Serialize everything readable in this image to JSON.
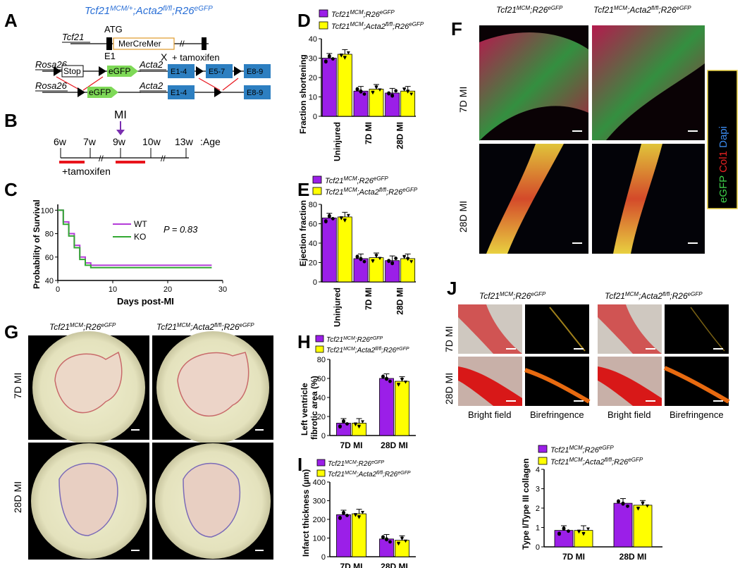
{
  "panels": {
    "A": "A",
    "B": "B",
    "C": "C",
    "D": "D",
    "E": "E",
    "F": "F",
    "G": "G",
    "H": "H",
    "I": "I",
    "J": "J"
  },
  "genotype": {
    "ctrl": {
      "g1": "Tcf21",
      "s1": "MCM",
      "g2": ";R26",
      "s2": "eGFP"
    },
    "ko": {
      "g1": "Tcf21",
      "s1": "MCM",
      "g2": ";Acta2",
      "s2": "fl/fl",
      "g3": ";R26",
      "s3": "eGFP"
    },
    "ko_het": {
      "g1": "Tcf21",
      "s1": "MCM/+",
      "g2": ";Acta2",
      "s2": "fl/fl",
      "g3": ";R26",
      "s3": "eGFP"
    }
  },
  "panel_a": {
    "tcf21": "Tcf21",
    "atg": "ATG",
    "e1": "E1",
    "mercremer": "MerCreMer",
    "cross": "X",
    "tamoxifen": "+ tamoxifen",
    "rosa26": "Rosa26",
    "stop": "Stop",
    "egfp": "eGFP",
    "acta2": "Acta2",
    "e14": "E1-4",
    "e57": "E5-7",
    "e89": "E8-9"
  },
  "panel_b": {
    "mi": "MI",
    "ticks": [
      "6w",
      "7w",
      "9w",
      "10w",
      "13w"
    ],
    "age": ":Age",
    "tamoxifen": "+tamoxifen",
    "break": "//"
  },
  "panel_c": {
    "ylabel": "Probability of Survival",
    "xlabel": "Days post-MI",
    "pvalue": "P = 0.83",
    "yticks": [
      "40",
      "60",
      "80",
      "100"
    ],
    "xticks": [
      "0",
      "10",
      "20",
      "30"
    ],
    "chart_data": {
      "type": "line",
      "xlabel": "Days post-MI",
      "ylabel": "Probability of Survival",
      "xlim": [
        0,
        30
      ],
      "ylim": [
        40,
        105
      ],
      "series": [
        {
          "name": "WT",
          "color": "#b43cd8",
          "x": [
            0,
            1,
            1,
            2,
            2,
            3,
            3,
            4,
            4,
            5,
            5,
            6,
            6,
            28
          ],
          "y": [
            100,
            100,
            90,
            90,
            80,
            80,
            70,
            70,
            60,
            60,
            55,
            55,
            53,
            53
          ]
        },
        {
          "name": "KO",
          "color": "#32a832",
          "x": [
            0,
            1,
            1,
            2,
            2,
            3,
            3,
            4,
            4,
            5,
            5,
            6,
            6,
            28
          ],
          "y": [
            100,
            100,
            88,
            88,
            78,
            78,
            68,
            68,
            58,
            58,
            53,
            53,
            51,
            51
          ]
        }
      ]
    }
  },
  "panel_d": {
    "ylabel": "Fraction shortening",
    "yticks": [
      "0",
      "10",
      "20",
      "30",
      "40"
    ],
    "categories": [
      "Uninjured",
      "7D MI",
      "28D MI"
    ],
    "chart_data": {
      "type": "bar",
      "categories": [
        "Uninjured",
        "7D MI",
        "28D MI"
      ],
      "ylim": [
        0,
        40
      ],
      "ylabel": "Fraction shortening",
      "series": [
        {
          "name": "Tcf21MCM;R26eGFP",
          "values": [
            30,
            13,
            12
          ]
        },
        {
          "name": "Tcf21MCM;Acta2fl/fl;R26eGFP",
          "values": [
            32,
            14,
            13
          ]
        }
      ]
    }
  },
  "panel_e": {
    "ylabel": "Ejection fraction",
    "yticks": [
      "0",
      "20",
      "40",
      "60",
      "80"
    ],
    "categories": [
      "Uninjured",
      "7D MI",
      "28D MI"
    ],
    "chart_data": {
      "type": "bar",
      "categories": [
        "Uninjured",
        "7D MI",
        "28D MI"
      ],
      "ylim": [
        0,
        80
      ],
      "ylabel": "Ejection fraction",
      "series": [
        {
          "name": "Tcf21MCM;R26eGFP",
          "values": [
            66,
            24,
            22
          ]
        },
        {
          "name": "Tcf21MCM;Acta2fl/fl;R26eGFP",
          "values": [
            67,
            25,
            24
          ]
        }
      ]
    }
  },
  "panel_f": {
    "row1": "7D MI",
    "row2": "28D MI",
    "stain_egfp": "eGFP",
    "stain_col1": "Col1",
    "stain_dapi": "Dapi"
  },
  "panel_g": {
    "row1": "7D MI",
    "row2": "28D MI"
  },
  "panel_h": {
    "ylabel1": "Left ventricle",
    "ylabel2": "fibrotic area (%)",
    "yticks": [
      "0",
      "20",
      "40",
      "60",
      "80"
    ],
    "categories": [
      "7D MI",
      "28D MI"
    ],
    "chart_data": {
      "type": "bar",
      "categories": [
        "7D MI",
        "28D MI"
      ],
      "ylim": [
        0,
        80
      ],
      "ylabel": "Left ventricle fibrotic area (%)",
      "series": [
        {
          "name": "Tcf21MCM;R26eGFP",
          "values": [
            13,
            60
          ]
        },
        {
          "name": "Tcf21MCM;Acta2fl/fl;R26eGFP",
          "values": [
            13,
            57
          ]
        }
      ]
    }
  },
  "panel_i": {
    "ylabel": "Infarct thickness (µm)",
    "yticks": [
      "0",
      "100",
      "200",
      "300",
      "400"
    ],
    "categories": [
      "7D MI",
      "28D MI"
    ],
    "chart_data": {
      "type": "bar",
      "categories": [
        "7D MI",
        "28D MI"
      ],
      "ylim": [
        0,
        400
      ],
      "ylabel": "Infarct thickness (µm)",
      "series": [
        {
          "name": "Tcf21MCM;R26eGFP",
          "values": [
            225,
            95
          ]
        },
        {
          "name": "Tcf21MCM;Acta2fl/fl;R26eGFP",
          "values": [
            230,
            88
          ]
        }
      ]
    }
  },
  "panel_j": {
    "row1": "7D MI",
    "row2": "28D MI",
    "bright": "Bright field",
    "biref": "Birefringence",
    "ylabel": "Type I/Type III collagen",
    "yticks": [
      "0",
      "1",
      "2",
      "3",
      "4"
    ],
    "categories": [
      "7D MI",
      "28D MI"
    ],
    "chart_data": {
      "type": "bar",
      "categories": [
        "7D MI",
        "28D MI"
      ],
      "ylim": [
        0,
        4
      ],
      "ylabel": "Type I/Type III collagen",
      "series": [
        {
          "name": "Tcf21MCM;R26eGFP",
          "values": [
            0.85,
            2.25
          ]
        },
        {
          "name": "Tcf21MCM;Acta2fl/fl;R26eGFP",
          "values": [
            0.85,
            2.15
          ]
        }
      ]
    }
  },
  "colors": {
    "ctrl": "#9b1fe8",
    "ko": "#ffff00",
    "wt_line": "#b43cd8",
    "ko_line": "#32a832",
    "title_blue": "#2a6fd6",
    "red": "#e8141c",
    "exon": "#2d7fc1",
    "egfp": "#7ed957"
  }
}
